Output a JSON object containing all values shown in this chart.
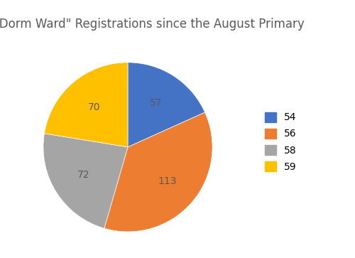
{
  "title": "\"Dorm Ward\" Registrations since the August Primary",
  "labels": [
    "54",
    "56",
    "58",
    "59"
  ],
  "values": [
    57,
    113,
    72,
    70
  ],
  "colors": [
    "#4472C4",
    "#ED7D31",
    "#A5A5A5",
    "#FFC000"
  ],
  "legend_labels": [
    "54",
    "56",
    "58",
    "59"
  ],
  "startangle": 90,
  "title_fontsize": 12,
  "label_fontsize": 10,
  "background_color": "#ffffff"
}
